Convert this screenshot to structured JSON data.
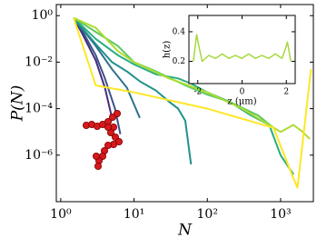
{
  "chart_data": {
    "type": "line",
    "x_label": "N",
    "y_label": "P(N)",
    "log_x": true,
    "log_y": true,
    "xlim": [
      0.87,
      2800
    ],
    "ylim": [
      1e-08,
      3
    ],
    "xticks": [
      {
        "value": 1,
        "label": "10⁰"
      },
      {
        "value": 10,
        "label": "10¹"
      },
      {
        "value": 100,
        "label": "10²"
      },
      {
        "value": 1000,
        "label": "10³"
      }
    ],
    "yticks": [
      {
        "value": 1,
        "label": "10⁰"
      },
      {
        "value": 0.01,
        "label": "10⁻²"
      },
      {
        "value": 0.0001,
        "label": "10⁻⁴"
      },
      {
        "value": 1e-06,
        "label": "10⁻⁶"
      }
    ],
    "series": [
      {
        "color": "#472d7b",
        "x": [
          1.5,
          2,
          3,
          4,
          5
        ],
        "values": [
          0.8,
          0.15,
          0.012,
          0.0008,
          4e-05
        ]
      },
      {
        "color": "#3b528b",
        "x": [
          1.5,
          2,
          3,
          4,
          5.5,
          6.5
        ],
        "values": [
          0.8,
          0.2,
          0.02,
          0.002,
          0.0001,
          8e-06
        ]
      },
      {
        "color": "#2c728e",
        "x": [
          1.5,
          3,
          5,
          8,
          12
        ],
        "values": [
          0.8,
          0.05,
          0.005,
          0.0008,
          4e-05
        ]
      },
      {
        "color": "#21918c",
        "x": [
          1.5,
          3,
          5,
          8,
          12,
          20,
          30,
          40,
          50,
          60
        ],
        "values": [
          0.8,
          0.06,
          0.01,
          0.004,
          0.0015,
          0.0006,
          0.0002,
          0.0001,
          3e-05,
          4e-07
        ]
      },
      {
        "color": "#28ae80",
        "x": [
          1.5,
          3,
          6,
          10,
          20,
          40,
          60,
          100,
          200,
          400,
          700,
          1000,
          1500
        ],
        "values": [
          0.8,
          0.1,
          0.02,
          0.008,
          0.003,
          0.002,
          0.0012,
          0.0005,
          0.0002,
          5e-05,
          2e-05,
          1e-06,
          1.5e-07
        ]
      },
      {
        "color": "#5ec962",
        "x": [
          1.5,
          3,
          6,
          10,
          20,
          50,
          100,
          200,
          500,
          800
        ],
        "values": [
          0.8,
          0.2,
          0.05,
          0.01,
          0.004,
          0.001,
          0.0004,
          0.0002,
          5e-05,
          1.5e-05
        ]
      },
      {
        "color": "#addc30",
        "x": [
          1.5,
          3,
          6,
          10,
          30,
          100,
          300,
          700,
          1000,
          1500,
          2000,
          2500
        ],
        "values": [
          0.8,
          0.3,
          0.03,
          0.01,
          0.002,
          0.0005,
          0.0001,
          2e-05,
          1e-05,
          2e-05,
          1e-05,
          5e-06
        ]
      },
      {
        "color": "#fde725",
        "x": [
          1.5,
          3,
          10,
          100,
          800,
          1500,
          1700,
          2600
        ],
        "values": [
          0.8,
          0.001,
          0.0005,
          0.0001,
          1.5e-05,
          1e-07,
          4e-08,
          0.005
        ]
      }
    ],
    "inset": {
      "type": "line",
      "x_label": "z (μm)",
      "y_label": "h(z)",
      "xlim": [
        -2.4,
        2.4
      ],
      "ylim": [
        0.05,
        0.51
      ],
      "xticks": [
        -2,
        0,
        2
      ],
      "yticks": [
        0.2,
        0.4
      ],
      "color": "#a6d83c",
      "x": [
        -2.2,
        -2.05,
        -1.95,
        -1.8,
        -1.5,
        -1.2,
        -0.9,
        -0.6,
        -0.3,
        0,
        0.3,
        0.6,
        0.9,
        1.2,
        1.5,
        1.8,
        1.95,
        2.05,
        2.2
      ],
      "values": [
        0.2,
        0.38,
        0.3,
        0.2,
        0.24,
        0.22,
        0.25,
        0.22,
        0.24,
        0.22,
        0.25,
        0.22,
        0.24,
        0.22,
        0.25,
        0.22,
        0.28,
        0.33,
        0.2
      ]
    }
  }
}
